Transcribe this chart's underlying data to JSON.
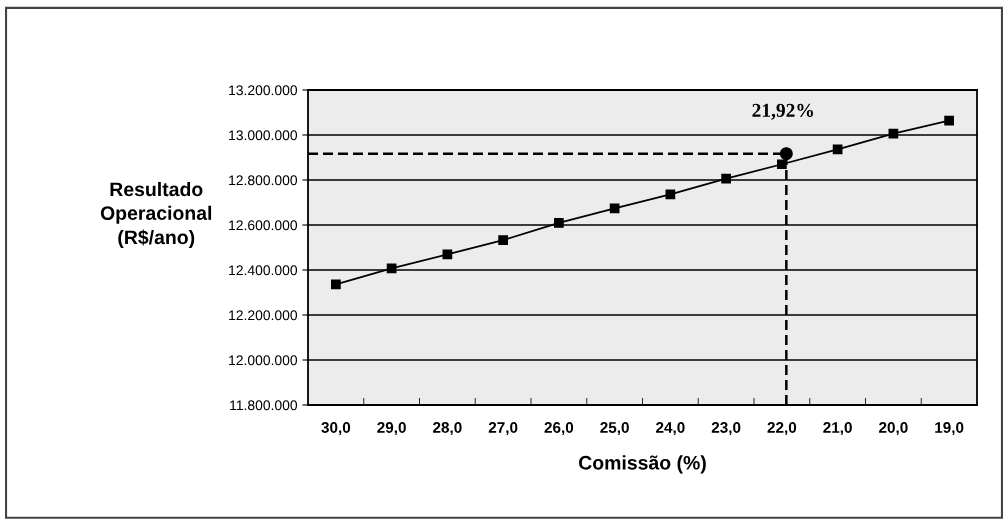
{
  "chart_data": {
    "type": "line",
    "xlabel": "Comissão (%)",
    "ylabel": "Resultado\nOperacional\n(R$/ano)",
    "x": [
      30,
      29,
      28,
      27,
      26,
      25,
      24,
      23,
      22,
      21,
      20,
      19
    ],
    "series": [
      {
        "color": "#000000",
        "marker": "square",
        "line_style": "solid",
        "values": [
          12336000,
          12407000,
          12469000,
          12533000,
          12609000,
          12674000,
          12736000,
          12806000,
          12870000,
          12936000,
          13006000,
          13064000
        ]
      },
      {
        "type": "scatter",
        "color": "#000000",
        "marker": "circle",
        "x": [
          21.92
        ],
        "values": [
          12917000
        ]
      }
    ],
    "ref_lines": [
      {
        "axis": "x",
        "value": 21.92,
        "label": null,
        "color": "#000000",
        "line_style": "dashed"
      },
      {
        "axis": "y",
        "value": 12917000,
        "label": null,
        "color": "#000000",
        "line_style": "dashed"
      }
    ],
    "annotations": [
      {
        "text": "21,92%",
        "x": 21.92,
        "y": 12917000
      }
    ],
    "xlim": [
      30.5,
      18.5
    ],
    "xticks": [
      {
        "value": 30,
        "label": "30,0"
      },
      {
        "value": 29,
        "label": "29,0"
      },
      {
        "value": 28,
        "label": "28,0"
      },
      {
        "value": 27,
        "label": "27,0"
      },
      {
        "value": 26,
        "label": "26,0"
      },
      {
        "value": 25,
        "label": "25,0"
      },
      {
        "value": 24,
        "label": "24,0"
      },
      {
        "value": 23,
        "label": "23,0"
      },
      {
        "value": 22,
        "label": "22,0"
      },
      {
        "value": 21,
        "label": "21,0"
      },
      {
        "value": 20,
        "label": "20,0"
      },
      {
        "value": 19,
        "label": "19,0"
      },
      {
        "value": 29.5,
        "label": null
      },
      {
        "value": 28.5,
        "label": null
      },
      {
        "value": 27.5,
        "label": null
      },
      {
        "value": 26.5,
        "label": null
      },
      {
        "value": 25.5,
        "label": null
      },
      {
        "value": 24.5,
        "label": null
      },
      {
        "value": 23.5,
        "label": null
      },
      {
        "value": 22.5,
        "label": null
      },
      {
        "value": 21.5,
        "label": null
      },
      {
        "value": 20.5,
        "label": null
      },
      {
        "value": 19.5,
        "label": null
      }
    ],
    "ylim": [
      11800000,
      13200000
    ],
    "yticks": [
      {
        "value": 11800000,
        "label": "11.800.000"
      },
      {
        "value": 12000000,
        "label": "12.000.000"
      },
      {
        "value": 12200000,
        "label": "12.200.000"
      },
      {
        "value": 12400000,
        "label": "12.400.000"
      },
      {
        "value": 12600000,
        "label": "12.600.000"
      },
      {
        "value": 12800000,
        "label": "12.800.000"
      },
      {
        "value": 13000000,
        "label": "13.000.000"
      },
      {
        "value": 13200000,
        "label": "13.200.000"
      }
    ],
    "grid": "y",
    "legend": false
  }
}
